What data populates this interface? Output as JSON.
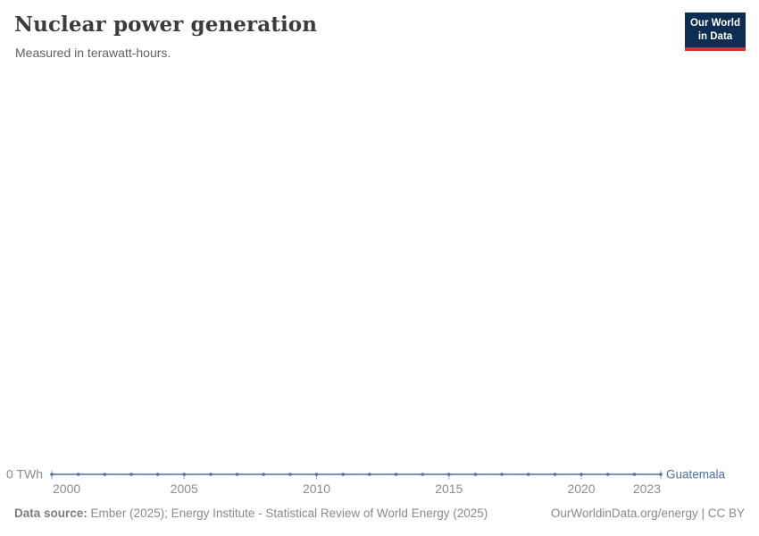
{
  "header": {
    "title": "Nuclear power generation",
    "subtitle": "Measured in terawatt-hours."
  },
  "logo": {
    "line1": "Our World",
    "line2": "in Data",
    "bg_color": "#0d2d52",
    "bar_color": "#d0342c",
    "text_color": "#ffffff"
  },
  "chart_data": {
    "type": "line",
    "title": "Nuclear power generation",
    "subtitle": "Measured in terawatt-hours.",
    "unit": "terawatt-hours",
    "x": [
      2000,
      2001,
      2002,
      2003,
      2004,
      2005,
      2006,
      2007,
      2008,
      2009,
      2010,
      2011,
      2012,
      2013,
      2014,
      2015,
      2016,
      2017,
      2018,
      2019,
      2020,
      2021,
      2022,
      2023
    ],
    "series": [
      {
        "name": "Guatemala",
        "color": "#4d6fab",
        "values": [
          0,
          0,
          0,
          0,
          0,
          0,
          0,
          0,
          0,
          0,
          0,
          0,
          0,
          0,
          0,
          0,
          0,
          0,
          0,
          0,
          0,
          0,
          0,
          0
        ]
      }
    ],
    "x_ticks": [
      2000,
      2005,
      2010,
      2015,
      2020,
      2023
    ],
    "y_ticks": [
      {
        "value": 0,
        "label": "0 TWh"
      }
    ],
    "xlim": [
      2000,
      2023
    ],
    "ylim": [
      0,
      null
    ],
    "grid": false,
    "legend_position": "line-end",
    "tick_label_color": "#8c8c8c",
    "axis_tick_color": "#a5a5a5"
  },
  "footer": {
    "source_label": "Data source:",
    "source_text": "Ember (2025); Energy Institute - Statistical Review of World Energy (2025)",
    "credit": "OurWorldinData.org/energy | CC BY"
  }
}
